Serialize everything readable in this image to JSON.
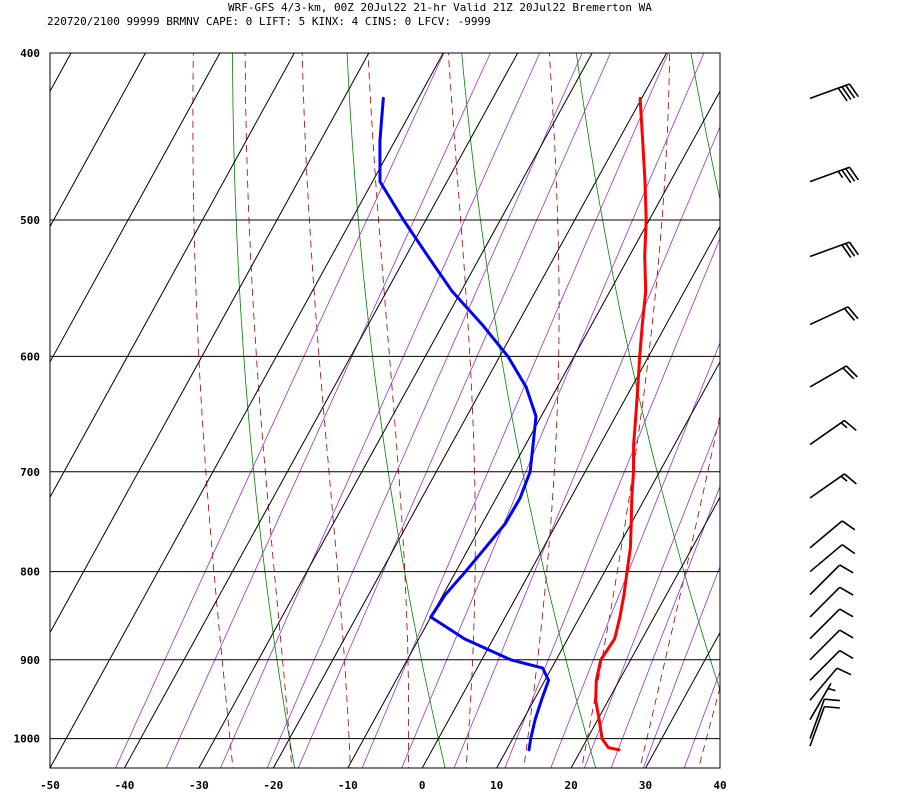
{
  "header": {
    "line1": "WRF-GFS 4/3-km, 00Z 20Jul22 21-hr Valid 21Z 20Jul22 Bremerton WA",
    "line2": "220720/2100 99999  BRMNV   CAPE:     0 LIFT:     5 KINX:     4 CINS:     0 LFCV: -9999"
  },
  "colors": {
    "temperature": "#ff0000",
    "dewpoint": "#0000ff",
    "isotherm": "#000000",
    "dry_adiabat": "#008000",
    "moist_adiabat": "#a00000",
    "mixing_ratio": "#9933cc",
    "wind_barb": "#000000"
  },
  "chart_data": {
    "type": "line",
    "subtype": "skew-t log-p sounding",
    "x_axis": {
      "label": "",
      "unit": "degC",
      "range": [
        -50,
        40
      ],
      "ticks": [
        -50,
        -40,
        -30,
        -20,
        -10,
        0,
        10,
        20,
        30,
        40
      ]
    },
    "y_axis": {
      "label": "",
      "unit": "hPa",
      "scale": "log",
      "range": [
        1040,
        400
      ],
      "ticks": [
        400,
        500,
        600,
        700,
        800,
        900,
        1000
      ]
    },
    "grid": true,
    "series": [
      {
        "role": "temperature",
        "points": [
          {
            "p": 1015,
            "t": 25.1
          },
          {
            "p": 1012,
            "t": 23.5
          },
          {
            "p": 1000,
            "t": 22.0
          },
          {
            "p": 975,
            "t": 20.2
          },
          {
            "p": 950,
            "t": 18.3
          },
          {
            "p": 925,
            "t": 16.9
          },
          {
            "p": 900,
            "t": 16.0
          },
          {
            "p": 875,
            "t": 16.3
          },
          {
            "p": 850,
            "t": 15.4
          },
          {
            "p": 825,
            "t": 14.3
          },
          {
            "p": 800,
            "t": 13.0
          },
          {
            "p": 775,
            "t": 11.7
          },
          {
            "p": 750,
            "t": 10.0
          },
          {
            "p": 725,
            "t": 8.2
          },
          {
            "p": 700,
            "t": 6.5
          },
          {
            "p": 675,
            "t": 4.5
          },
          {
            "p": 650,
            "t": 2.7
          },
          {
            "p": 625,
            "t": 0.8
          },
          {
            "p": 600,
            "t": -1.2
          },
          {
            "p": 575,
            "t": -3.2
          },
          {
            "p": 550,
            "t": -5.2
          },
          {
            "p": 525,
            "t": -7.9
          },
          {
            "p": 500,
            "t": -10.4
          },
          {
            "p": 475,
            "t": -13.4
          },
          {
            "p": 450,
            "t": -16.7
          },
          {
            "p": 425,
            "t": -20.2
          }
        ]
      },
      {
        "role": "dewpoint",
        "points": [
          {
            "p": 1015,
            "t": 13.0
          },
          {
            "p": 1000,
            "t": 12.4
          },
          {
            "p": 975,
            "t": 11.6
          },
          {
            "p": 950,
            "t": 11.0
          },
          {
            "p": 925,
            "t": 10.5
          },
          {
            "p": 910,
            "t": 8.8
          },
          {
            "p": 900,
            "t": 3.9
          },
          {
            "p": 875,
            "t": -3.9
          },
          {
            "p": 850,
            "t": -10.0
          },
          {
            "p": 825,
            "t": -9.7
          },
          {
            "p": 800,
            "t": -8.7
          },
          {
            "p": 775,
            "t": -7.8
          },
          {
            "p": 750,
            "t": -6.9
          },
          {
            "p": 725,
            "t": -6.8
          },
          {
            "p": 700,
            "t": -7.4
          },
          {
            "p": 675,
            "t": -9.0
          },
          {
            "p": 650,
            "t": -10.7
          },
          {
            "p": 625,
            "t": -14.2
          },
          {
            "p": 600,
            "t": -18.9
          },
          {
            "p": 575,
            "t": -24.7
          },
          {
            "p": 550,
            "t": -31.2
          },
          {
            "p": 525,
            "t": -37.0
          },
          {
            "p": 500,
            "t": -43.0
          },
          {
            "p": 475,
            "t": -49.0
          },
          {
            "p": 450,
            "t": -52.0
          },
          {
            "p": 425,
            "t": -54.7
          }
        ]
      }
    ],
    "wind_barbs": [
      {
        "p": 425,
        "dir": 250,
        "speed_kt": 40
      },
      {
        "p": 475,
        "dir": 250,
        "speed_kt": 35
      },
      {
        "p": 525,
        "dir": 250,
        "speed_kt": 30
      },
      {
        "p": 575,
        "dir": 245,
        "speed_kt": 20
      },
      {
        "p": 625,
        "dir": 240,
        "speed_kt": 20
      },
      {
        "p": 675,
        "dir": 235,
        "speed_kt": 15
      },
      {
        "p": 725,
        "dir": 235,
        "speed_kt": 15
      },
      {
        "p": 775,
        "dir": 230,
        "speed_kt": 10
      },
      {
        "p": 800,
        "dir": 230,
        "speed_kt": 10
      },
      {
        "p": 825,
        "dir": 225,
        "speed_kt": 10
      },
      {
        "p": 850,
        "dir": 225,
        "speed_kt": 10
      },
      {
        "p": 875,
        "dir": 225,
        "speed_kt": 10
      },
      {
        "p": 900,
        "dir": 225,
        "speed_kt": 10
      },
      {
        "p": 925,
        "dir": 225,
        "speed_kt": 10
      },
      {
        "p": 950,
        "dir": 220,
        "speed_kt": 10
      },
      {
        "p": 975,
        "dir": 210,
        "speed_kt": 5
      },
      {
        "p": 1000,
        "dir": 200,
        "speed_kt": 10
      },
      {
        "p": 1010,
        "dir": 200,
        "speed_kt": 10
      }
    ],
    "background_lines": {
      "dry_adiabat_theta_c": [
        -20,
        0,
        20,
        40,
        60,
        80,
        100,
        120,
        140,
        160
      ],
      "moist_adiabat_theta_c": [
        -28,
        -20,
        -12,
        -4,
        4,
        12,
        20,
        28,
        36
      ],
      "mixing_ratio_gkg": [
        0.1,
        0.2,
        0.4,
        0.7,
        1,
        2,
        3,
        5,
        8,
        12,
        16,
        20,
        26,
        36
      ]
    }
  }
}
